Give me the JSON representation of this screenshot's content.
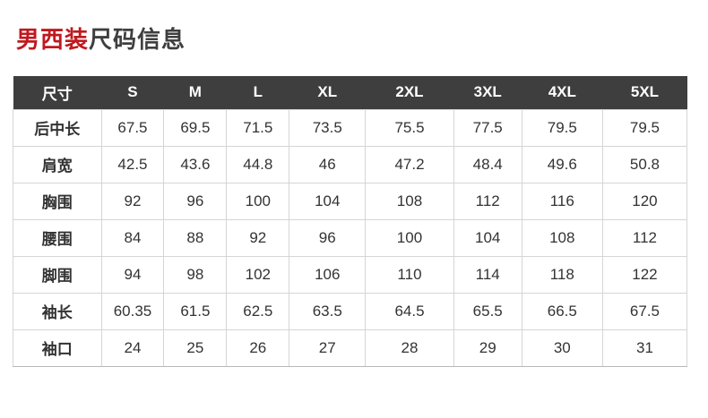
{
  "title": {
    "highlight": "男西装",
    "rest": "尺码信息"
  },
  "colors": {
    "title_highlight": "#c0191f",
    "title_rest": "#3f3f3f",
    "header_bg": "#3e3e3e",
    "header_text": "#ffffff",
    "cell_text": "#333333",
    "grid_line": "#d5d5d5",
    "outer_line": "#b7b7b7"
  },
  "chart_data": {
    "type": "table",
    "title": "男西装尺码信息",
    "columns": [
      "尺寸",
      "S",
      "M",
      "L",
      "XL",
      "2XL",
      "3XL",
      "4XL",
      "5XL"
    ],
    "rows": [
      {
        "label": "后中长",
        "values": [
          "67.5",
          "69.5",
          "71.5",
          "73.5",
          "75.5",
          "77.5",
          "79.5",
          "79.5"
        ]
      },
      {
        "label": "肩宽",
        "values": [
          "42.5",
          "43.6",
          "44.8",
          "46",
          "47.2",
          "48.4",
          "49.6",
          "50.8"
        ]
      },
      {
        "label": "胸围",
        "values": [
          "92",
          "96",
          "100",
          "104",
          "108",
          "112",
          "116",
          "120"
        ]
      },
      {
        "label": "腰围",
        "values": [
          "84",
          "88",
          "92",
          "96",
          "100",
          "104",
          "108",
          "112"
        ]
      },
      {
        "label": "脚围",
        "values": [
          "94",
          "98",
          "102",
          "106",
          "110",
          "114",
          "118",
          "122"
        ]
      },
      {
        "label": "袖长",
        "values": [
          "60.35",
          "61.5",
          "62.5",
          "63.5",
          "64.5",
          "65.5",
          "66.5",
          "67.5"
        ]
      },
      {
        "label": "袖口",
        "values": [
          "24",
          "25",
          "26",
          "27",
          "28",
          "29",
          "30",
          "31"
        ]
      }
    ],
    "layout": {
      "grid": true,
      "header_style": "dark-bar",
      "column_width_percents": [
        13.1,
        9.3,
        9.3,
        9.3,
        11.3,
        13.1,
        10.1,
        12.0,
        12.5
      ]
    }
  }
}
